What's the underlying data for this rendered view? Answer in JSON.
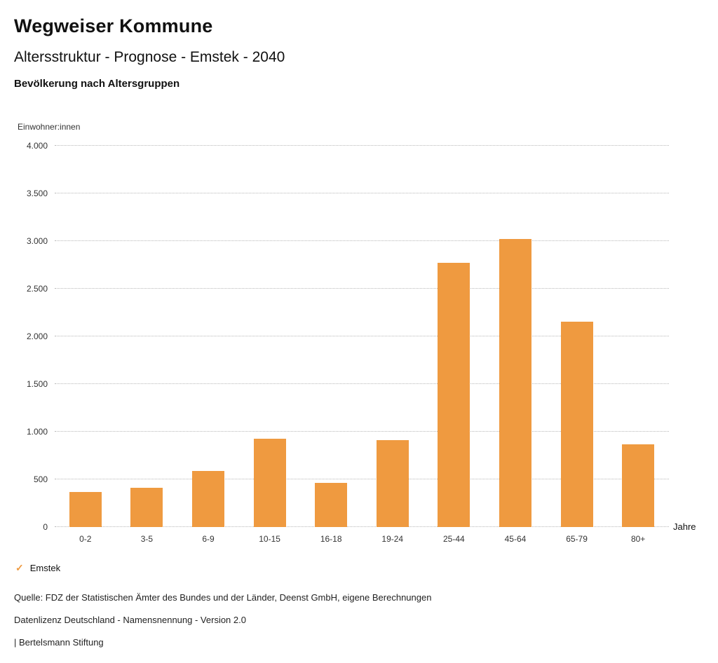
{
  "header": {
    "title": "Wegweiser Kommune",
    "subtitle": "Altersstruktur - Prognose - Emstek - 2040",
    "chart_title": "Bevölkerung nach Altersgruppen"
  },
  "chart_data": {
    "type": "bar",
    "title": "Bevölkerung nach Altersgruppen",
    "ylabel": "Einwohner:innen",
    "xlabel": "Jahre",
    "categories": [
      "0-2",
      "3-5",
      "6-9",
      "10-15",
      "16-18",
      "19-24",
      "25-44",
      "45-64",
      "65-79",
      "80+"
    ],
    "series": [
      {
        "name": "Emstek",
        "values": [
          370,
          410,
          590,
          930,
          460,
          915,
          2770,
          3020,
          2155,
          870
        ]
      }
    ],
    "ylim": [
      0,
      4000
    ],
    "yticks": [
      {
        "value": 0,
        "label": "0"
      },
      {
        "value": 500,
        "label": "500"
      },
      {
        "value": 1000,
        "label": "1.000"
      },
      {
        "value": 1500,
        "label": "1.500"
      },
      {
        "value": 2000,
        "label": "2.000"
      },
      {
        "value": 2500,
        "label": "2.500"
      },
      {
        "value": 3000,
        "label": "3.000"
      },
      {
        "value": 3500,
        "label": "3.500"
      },
      {
        "value": 4000,
        "label": "4.000"
      }
    ],
    "grid": true,
    "legend_position": "bottom-left",
    "bar_color": "#EF9A40"
  },
  "legend": {
    "items": [
      {
        "label": "Emstek",
        "color": "#EF9A40",
        "icon": "check"
      }
    ]
  },
  "footer": {
    "source": "Quelle: FDZ der Statistischen Ämter des Bundes und der Länder, Deenst GmbH, eigene Berechnungen",
    "license": "Datenlizenz Deutschland - Namensnennung - Version 2.0",
    "publisher": "| Bertelsmann Stiftung"
  },
  "colors": {
    "bar": "#EF9A40",
    "grid": "#b8b8b8",
    "text": "#111111"
  }
}
